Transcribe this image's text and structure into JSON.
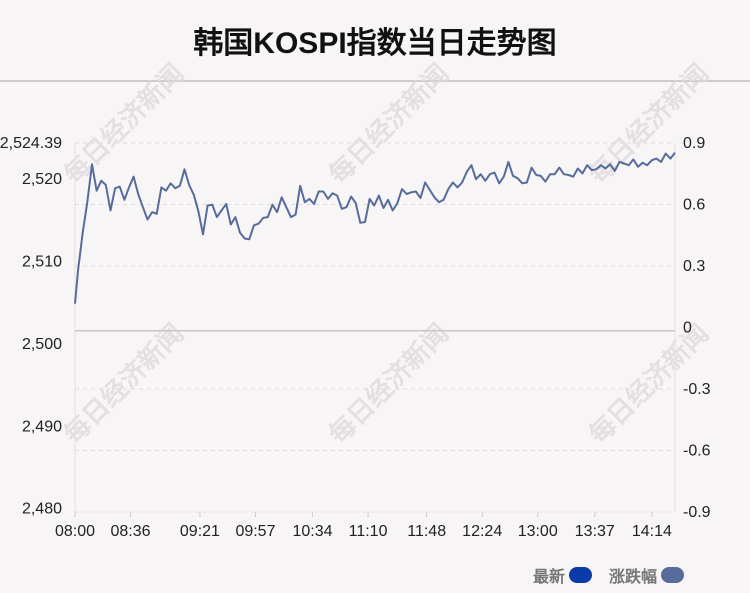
{
  "title": "韩国KOSPI指数当日走势图",
  "watermark": "每日经济新闻",
  "colors": {
    "accent": "#0b3ba8",
    "line": "#566c9b",
    "grid": "#dedbdd",
    "baseline": "#c9c5c8"
  },
  "legend": [
    {
      "label": "最新",
      "color": "#0b3ba8"
    },
    {
      "label": "涨跌幅",
      "color": "#566c9b"
    }
  ],
  "chart_data": {
    "type": "line",
    "title": "韩国KOSPI指数当日走势图",
    "x_ticks": [
      "08:00",
      "08:36",
      "09:21",
      "09:57",
      "10:34",
      "11:10",
      "11:48",
      "12:24",
      "13:00",
      "13:37",
      "14:14"
    ],
    "x_range": [
      "08:00",
      "14:29"
    ],
    "y_left": {
      "ticks": [
        "2,524.39",
        "2,520",
        "2,510",
        "2,500",
        "2,490",
        "2,480"
      ],
      "range": [
        2479.6,
        2524.39
      ]
    },
    "y_right": {
      "ticks": [
        "0.9",
        "0.6",
        "0.3",
        "0",
        "-0.3",
        "-0.6",
        "-0.9"
      ],
      "range": [
        -0.9,
        0.9
      ]
    },
    "baseline": 2501.6,
    "grid": "horizontal-dashed",
    "series": [
      {
        "x": [
          "08:00",
          "08:02",
          "08:05",
          "08:08",
          "08:11",
          "08:14",
          "08:17",
          "08:20",
          "08:23",
          "08:26",
          "08:29",
          "08:32",
          "08:35",
          "08:38",
          "08:41",
          "08:44",
          "08:47",
          "08:50",
          "08:53",
          "08:56",
          "08:59",
          "09:02",
          "09:05",
          "09:08",
          "09:11",
          "09:14",
          "09:17",
          "09:20",
          "09:23",
          "09:26",
          "09:29",
          "09:32",
          "09:35",
          "09:38",
          "09:41",
          "09:44",
          "09:47",
          "09:50",
          "09:53",
          "09:56",
          "09:59",
          "10:02",
          "10:05",
          "10:08",
          "10:11",
          "10:14",
          "10:17",
          "10:20",
          "10:23",
          "10:26",
          "10:29",
          "10:32",
          "10:35",
          "10:38",
          "10:41",
          "10:44",
          "10:47",
          "10:50",
          "10:53",
          "10:56",
          "10:59",
          "11:02",
          "11:05",
          "11:08",
          "11:11",
          "11:14",
          "11:17",
          "11:20",
          "11:23",
          "11:26",
          "11:29",
          "11:32",
          "11:35",
          "11:38",
          "11:41",
          "11:44",
          "11:47",
          "11:50",
          "11:53",
          "11:56",
          "11:59",
          "12:02",
          "12:05",
          "12:08",
          "12:11",
          "12:14",
          "12:17",
          "12:20",
          "12:23",
          "12:26",
          "12:29",
          "12:32",
          "12:35",
          "12:38",
          "12:41",
          "12:44",
          "12:47",
          "12:50",
          "12:53",
          "12:56",
          "12:59",
          "13:02",
          "13:05",
          "13:08",
          "13:11",
          "13:14",
          "13:17",
          "13:20",
          "13:23",
          "13:26",
          "13:29",
          "13:32",
          "13:35",
          "13:38",
          "13:41",
          "13:44",
          "13:47",
          "13:50",
          "13:53",
          "13:56",
          "13:59",
          "14:02",
          "14:05",
          "14:08",
          "14:11",
          "14:14",
          "14:17",
          "14:20",
          "14:23",
          "14:26",
          "14:29"
        ],
        "y": [
          2504.9,
          2509.0,
          2513.5,
          2517.2,
          2521.8,
          2518.6,
          2519.8,
          2519.3,
          2516.2,
          2518.9,
          2519.1,
          2517.5,
          2519.0,
          2520.3,
          2518.2,
          2516.6,
          2515.1,
          2516.0,
          2515.8,
          2519.0,
          2518.6,
          2519.5,
          2518.9,
          2519.2,
          2521.2,
          2519.3,
          2518.1,
          2516.1,
          2513.3,
          2516.8,
          2516.9,
          2515.4,
          2516.2,
          2517.0,
          2514.5,
          2515.4,
          2513.5,
          2512.8,
          2512.7,
          2514.4,
          2514.6,
          2515.3,
          2515.4,
          2516.9,
          2516.0,
          2517.8,
          2516.6,
          2515.4,
          2515.7,
          2519.2,
          2517.2,
          2517.6,
          2517.0,
          2518.5,
          2518.5,
          2517.6,
          2518.3,
          2518.0,
          2516.4,
          2516.6,
          2517.9,
          2517.1,
          2514.7,
          2514.8,
          2517.6,
          2516.8,
          2518.0,
          2516.5,
          2517.5,
          2516.2,
          2517.1,
          2518.8,
          2518.2,
          2518.4,
          2518.5,
          2517.7,
          2519.6,
          2518.7,
          2517.8,
          2517.2,
          2517.5,
          2518.8,
          2519.6,
          2519.0,
          2519.6,
          2520.9,
          2521.7,
          2520.0,
          2520.6,
          2519.8,
          2520.6,
          2520.8,
          2519.5,
          2520.3,
          2522.1,
          2520.4,
          2520.1,
          2519.5,
          2519.6,
          2521.4,
          2520.5,
          2520.4,
          2519.7,
          2520.6,
          2520.6,
          2521.4,
          2520.6,
          2520.5,
          2520.3,
          2521.3,
          2520.7,
          2521.7,
          2521.1,
          2521.2,
          2521.7,
          2521.3,
          2521.8,
          2521.0,
          2522.1,
          2521.9,
          2521.7,
          2522.4,
          2521.5,
          2522.0,
          2521.7,
          2522.3,
          2522.5,
          2522.1,
          2523.1,
          2522.5,
          2523.2
        ]
      }
    ]
  }
}
